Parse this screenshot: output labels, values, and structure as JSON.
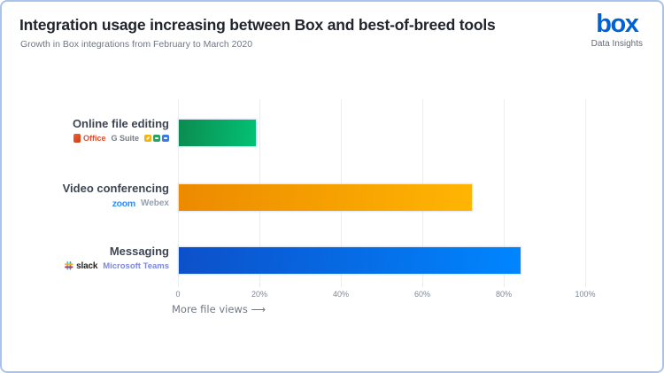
{
  "card": {
    "title": "Integration usage increasing between Box and best-of-breed tools",
    "subtitle": "Growth in Box integrations from February to March 2020",
    "logo": {
      "brand": "box",
      "tagline": "Data Insights",
      "brand_color": "#0061D5"
    }
  },
  "chart_data": {
    "type": "bar",
    "orientation": "horizontal",
    "title": "Integration usage increasing between Box and best-of-breed tools",
    "subtitle": "Growth in Box integrations from February to March 2020",
    "categories": [
      "Online file editing",
      "Video conferencing",
      "Messaging"
    ],
    "values": [
      19,
      72,
      84
    ],
    "unit": "% growth in file views",
    "xlabel": "More file views ⟶",
    "x_ticks": [
      "0",
      "20%",
      "40%",
      "60%",
      "80%",
      "100%"
    ],
    "xlim": [
      0,
      100
    ],
    "grid": true,
    "legend": "none",
    "rows": [
      {
        "label": "Online file editing",
        "value": 19,
        "integrations": [
          "Office",
          "G Suite"
        ],
        "office_label": "Office",
        "gsuite_label": "G Suite",
        "bar_from": "#0B8C50",
        "bar_to": "#03C173"
      },
      {
        "label": "Video conferencing",
        "value": 72,
        "integrations": [
          "zoom",
          "Webex"
        ],
        "zoom_label": "zoom",
        "webex_label": "Webex",
        "bar_from": "#EC8A00",
        "bar_to": "#FFB503"
      },
      {
        "label": "Messaging",
        "value": 84,
        "integrations": [
          "slack",
          "Microsoft Teams"
        ],
        "slack_label": "slack",
        "teams_label": "Microsoft Teams",
        "bar_from": "#0C50C9",
        "bar_to": "#0086FF"
      }
    ]
  }
}
